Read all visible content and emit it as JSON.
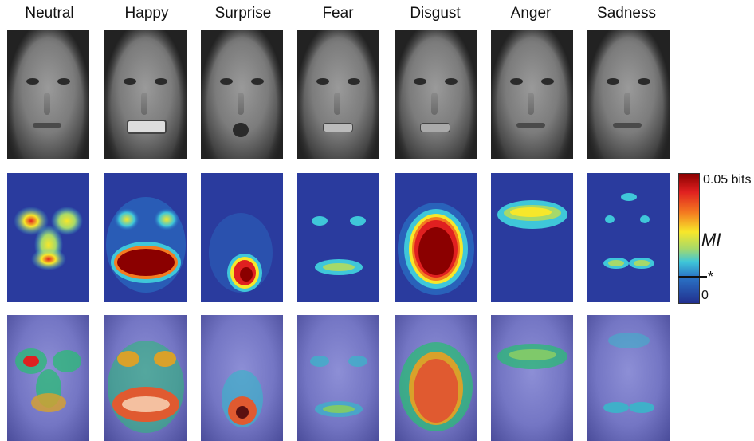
{
  "columns": [
    {
      "label": "Neutral"
    },
    {
      "label": "Happy"
    },
    {
      "label": "Surprise"
    },
    {
      "label": "Fear"
    },
    {
      "label": "Disgust"
    },
    {
      "label": "Anger"
    },
    {
      "label": "Sadness"
    }
  ],
  "colorbar": {
    "max_label": "0.05 bits",
    "axis_label": "MI",
    "threshold_label": "*",
    "min_label": "0"
  },
  "colors": {
    "background": "#2a3b9e",
    "low": "#22308f",
    "mid": "#3fc7d9",
    "high_mid": "#f7e72a",
    "high": "#e02020",
    "max": "#8b0000"
  }
}
